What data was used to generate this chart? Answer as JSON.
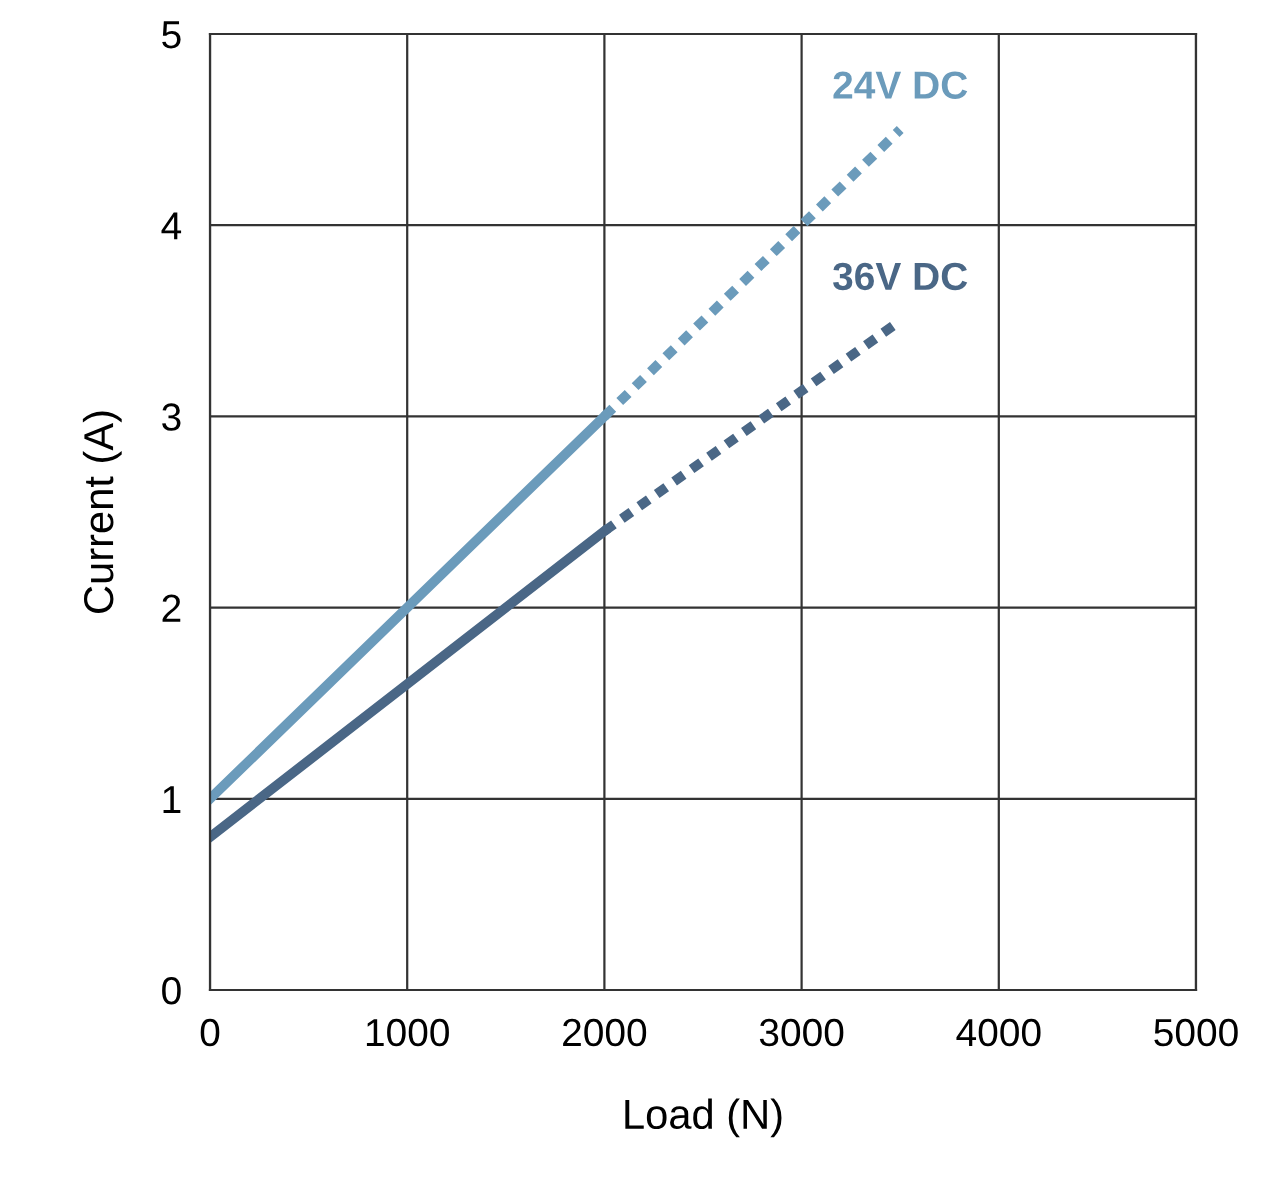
{
  "chart_data": {
    "type": "line",
    "xlabel": "Load (N)",
    "ylabel": "Current (A)",
    "xlim": [
      0,
      5000
    ],
    "ylim": [
      0,
      5
    ],
    "xticks": [
      0,
      1000,
      2000,
      3000,
      4000,
      5000
    ],
    "yticks": [
      0,
      1,
      2,
      3,
      4,
      5
    ],
    "grid": true,
    "legend": false,
    "marker": "none",
    "series": [
      {
        "name": "24V DC",
        "color": "#6b9bbb",
        "x": [
          0,
          2000
        ],
        "values": [
          1,
          3
        ],
        "line_style": "solid"
      },
      {
        "color": "#6b9bbb",
        "x": [
          2000,
          3500
        ],
        "values": [
          3,
          4.5
        ],
        "line_style": "dotted"
      },
      {
        "name": "36V DC",
        "color": "#4a6786",
        "x": [
          0,
          2000
        ],
        "values": [
          0.8,
          2.4
        ],
        "line_style": "solid"
      },
      {
        "color": "#4a6786",
        "x": [
          2000,
          3500
        ],
        "values": [
          2.4,
          3.5
        ],
        "line_style": "dotted"
      }
    ]
  }
}
